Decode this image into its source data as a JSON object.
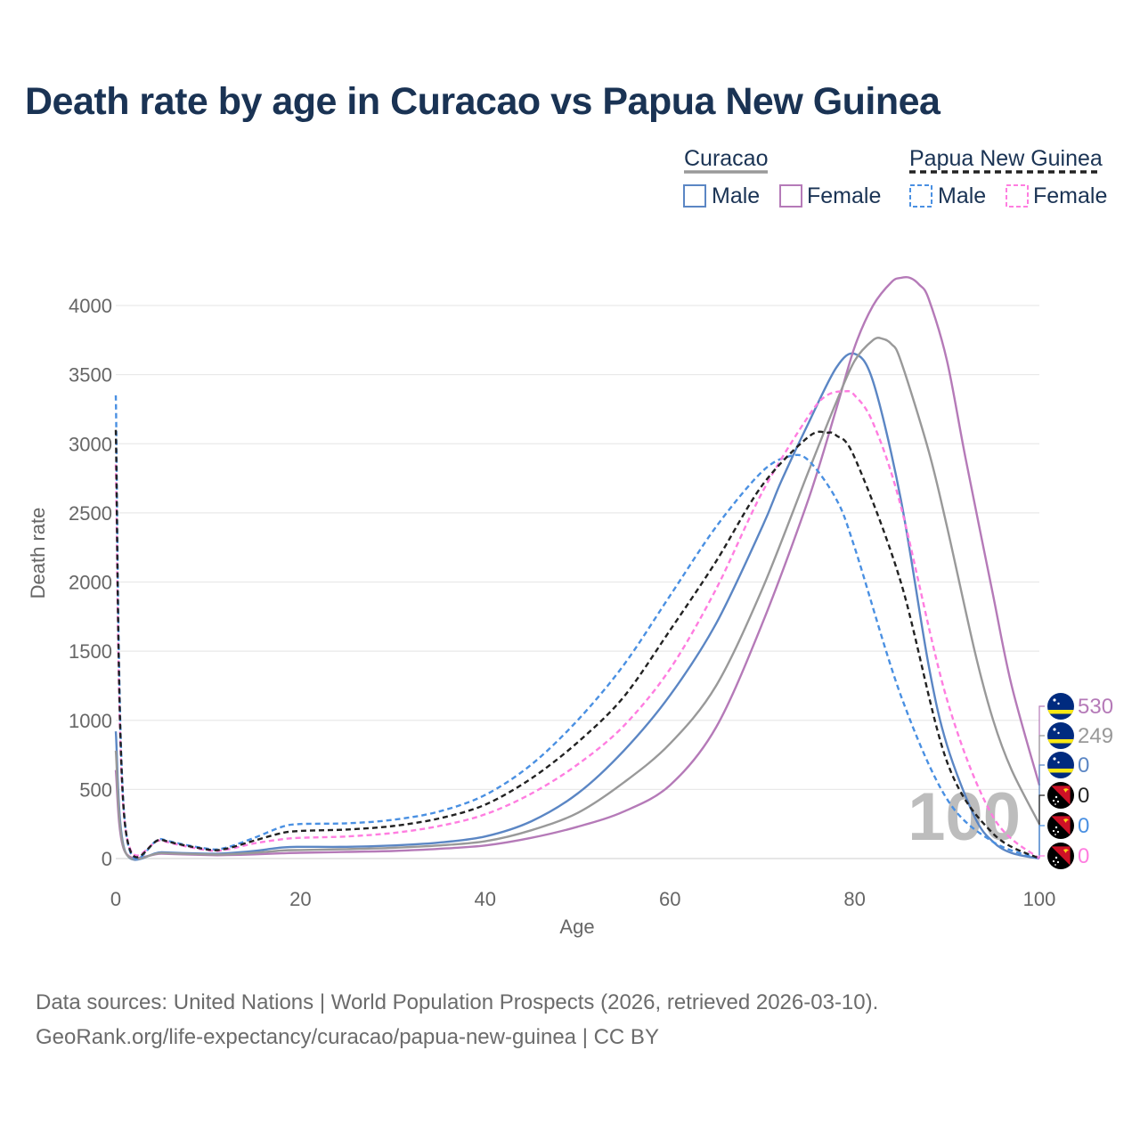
{
  "title": "Death rate by age in Curacao vs Papua New Guinea",
  "source_line1": "Data sources: United Nations | World Population Prospects (2026, retrieved 2026-03-10).",
  "source_line2": "GeoRank.org/life-expectancy/curacao/papua-new-guinea | CC BY",
  "legend": {
    "groups": [
      {
        "label": "Curacao",
        "dashed": false,
        "color": "#999999"
      },
      {
        "label": "Papua New Guinea",
        "dashed": true,
        "color": "#222222"
      }
    ],
    "male_label": "Male",
    "female_label": "Female"
  },
  "current_age": "100",
  "chart_data": {
    "type": "line",
    "xlabel": "Age",
    "ylabel": "Death rate",
    "xlim": [
      0,
      100
    ],
    "ylim": [
      0,
      4300
    ],
    "xticks": [
      0,
      20,
      40,
      60,
      80,
      100
    ],
    "yticks": [
      0,
      500,
      1000,
      1500,
      2000,
      2500,
      3000,
      3500,
      4000
    ],
    "grid": true,
    "series": [
      {
        "name": "Curacao Male",
        "country": "Curacao",
        "sex": "Male",
        "color": "#5b86c4",
        "dash": false,
        "x": [
          0,
          1,
          5,
          10,
          12,
          15,
          18,
          20,
          25,
          30,
          35,
          40,
          45,
          50,
          55,
          60,
          65,
          70,
          72,
          75,
          78,
          80,
          82,
          85,
          88,
          90,
          93,
          95,
          97,
          100
        ],
        "y": [
          920,
          55,
          45,
          35,
          38,
          55,
          80,
          85,
          85,
          95,
          115,
          160,
          270,
          470,
          780,
          1180,
          1700,
          2400,
          2720,
          3150,
          3550,
          3650,
          3450,
          2600,
          1400,
          820,
          300,
          120,
          40,
          0
        ],
        "end_value": "0"
      },
      {
        "name": "Curacao Female",
        "country": "Curacao",
        "sex": "Female",
        "color": "#b57ab8",
        "dash": false,
        "x": [
          0,
          1,
          5,
          10,
          12,
          15,
          18,
          20,
          25,
          30,
          35,
          40,
          45,
          50,
          55,
          60,
          65,
          70,
          75,
          78,
          80,
          82,
          84,
          85,
          86,
          87,
          88,
          90,
          92,
          95,
          97,
          100
        ],
        "y": [
          640,
          48,
          35,
          25,
          25,
          30,
          38,
          42,
          48,
          55,
          70,
          95,
          150,
          230,
          340,
          530,
          950,
          1700,
          2600,
          3250,
          3700,
          4000,
          4170,
          4200,
          4200,
          4150,
          4050,
          3600,
          2900,
          1900,
          1250,
          530
        ],
        "end_value": "530"
      },
      {
        "name": "Curacao Total",
        "country": "Curacao",
        "sex": "Total",
        "color": "#999999",
        "dash": false,
        "x": [
          0,
          1,
          5,
          10,
          12,
          15,
          18,
          20,
          25,
          30,
          35,
          40,
          45,
          50,
          55,
          60,
          65,
          70,
          75,
          78,
          80,
          82,
          83,
          84,
          85,
          88,
          90,
          93,
          95,
          97,
          100
        ],
        "y": [
          780,
          50,
          40,
          30,
          30,
          42,
          58,
          62,
          68,
          78,
          95,
          125,
          205,
          330,
          550,
          830,
          1250,
          1950,
          2800,
          3300,
          3600,
          3750,
          3760,
          3720,
          3600,
          2950,
          2400,
          1500,
          1000,
          640,
          249
        ],
        "end_value": "249"
      },
      {
        "name": "Papua New Guinea Male",
        "country": "Papua New Guinea",
        "sex": "Male",
        "color": "#4a90e2",
        "dash": true,
        "x": [
          0,
          1,
          5,
          10,
          12,
          15,
          18,
          20,
          25,
          30,
          35,
          40,
          45,
          50,
          55,
          60,
          65,
          70,
          73,
          75,
          78,
          80,
          85,
          90,
          95,
          100
        ],
        "y": [
          3350,
          250,
          140,
          70,
          80,
          150,
          230,
          250,
          255,
          280,
          340,
          460,
          680,
          1000,
          1400,
          1900,
          2400,
          2800,
          2910,
          2880,
          2600,
          2250,
          1180,
          430,
          120,
          0
        ],
        "end_value": "0"
      },
      {
        "name": "Papua New Guinea Female",
        "country": "Papua New Guinea",
        "sex": "Female",
        "color": "#ff7de0",
        "dash": true,
        "x": [
          0,
          1,
          5,
          10,
          12,
          15,
          18,
          20,
          25,
          30,
          35,
          40,
          45,
          50,
          55,
          60,
          65,
          70,
          75,
          77,
          79,
          80,
          82,
          85,
          90,
          95,
          100
        ],
        "y": [
          2850,
          240,
          130,
          60,
          65,
          110,
          140,
          150,
          160,
          185,
          235,
          320,
          470,
          680,
          960,
          1370,
          1950,
          2650,
          3200,
          3350,
          3380,
          3350,
          3150,
          2550,
          1150,
          300,
          0
        ],
        "end_value": "0"
      },
      {
        "name": "Papua New Guinea Total",
        "country": "Papua New Guinea",
        "sex": "Total",
        "color": "#222222",
        "dash": true,
        "x": [
          0,
          1,
          5,
          10,
          12,
          15,
          18,
          20,
          25,
          30,
          35,
          40,
          45,
          50,
          55,
          60,
          65,
          70,
          75,
          77,
          78,
          80,
          85,
          90,
          95,
          100
        ],
        "y": [
          3100,
          245,
          135,
          65,
          72,
          130,
          185,
          200,
          210,
          235,
          290,
          390,
          580,
          840,
          1170,
          1650,
          2150,
          2700,
          3050,
          3080,
          3060,
          2900,
          2000,
          700,
          180,
          0
        ],
        "end_value": "0"
      }
    ],
    "end_labels": [
      {
        "series": "Curacao Female",
        "flag": "curacao-flag",
        "value": "530",
        "color": "#b57ab8"
      },
      {
        "series": "Curacao Total",
        "flag": "curacao-flag",
        "value": "249",
        "color": "#999999"
      },
      {
        "series": "Curacao Male",
        "flag": "curacao-flag",
        "value": "0",
        "color": "#5b86c4"
      },
      {
        "series": "Papua New Guinea Total",
        "flag": "papua-new-guinea-flag",
        "value": "0",
        "color": "#222222"
      },
      {
        "series": "Papua New Guinea Male",
        "flag": "papua-new-guinea-flag",
        "value": "0",
        "color": "#4a90e2"
      },
      {
        "series": "Papua New Guinea Female",
        "flag": "papua-new-guinea-flag",
        "value": "0",
        "color": "#ff7de0"
      }
    ]
  }
}
